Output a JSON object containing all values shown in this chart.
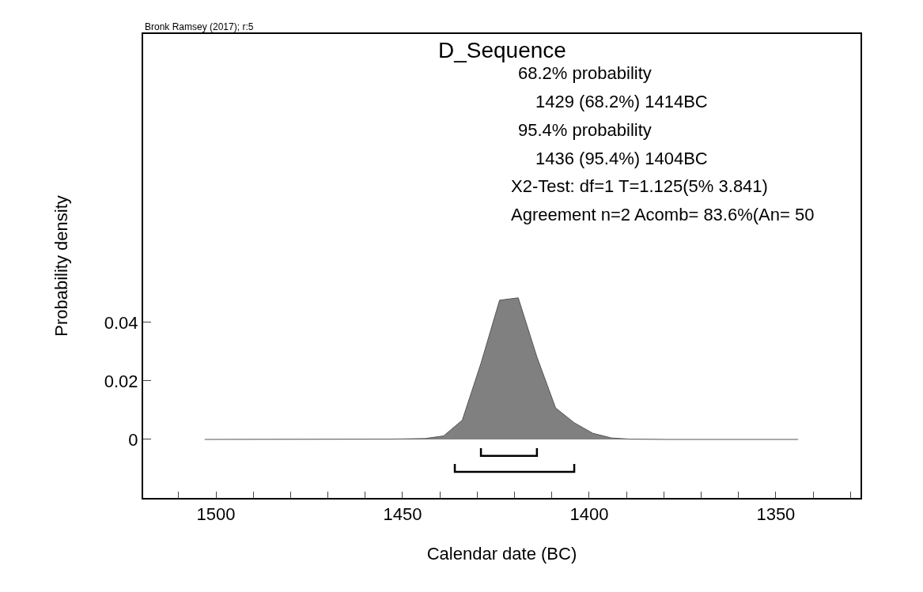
{
  "chart_data": {
    "type": "area",
    "title": "D_Sequence",
    "xlabel": "Calendar date (BC)",
    "ylabel": "Probability density",
    "annotations": [
      "Bronk Ramsey (2017); r:5",
      "68.2% probability",
      "1429 (68.2%) 1414BC",
      "95.4% probability",
      "1436 (95.4%) 1404BC",
      "X2-Test: df=1 T=1.125(5% 3.841)",
      "Agreement n=2 Acomb= 83.6%(An= 50"
    ],
    "series": [
      {
        "color": "#808080",
        "x": [
          1503,
          1454,
          1444,
          1439,
          1434,
          1429,
          1424,
          1419,
          1414,
          1409,
          1404,
          1399,
          1394,
          1389,
          1379,
          1344
        ],
        "values": [
          0,
          0.0001,
          0.0003,
          0.0012,
          0.0066,
          0.026,
          0.0476,
          0.0484,
          0.0282,
          0.0108,
          0.0057,
          0.0021,
          0.0005,
          0.0001,
          0,
          0
        ]
      },
      {
        "type": "line",
        "color": "#000000",
        "x": [
          1429,
          1429,
          1414,
          1414
        ],
        "values": [
          -0.003,
          -0.0056,
          -0.0056,
          -0.003
        ]
      },
      {
        "type": "line",
        "color": "#000000",
        "x": [
          1436,
          1436,
          1404,
          1404
        ],
        "values": [
          -0.0084,
          -0.0111,
          -0.0111,
          -0.0084
        ]
      }
    ],
    "xlim": [
      1519.5,
      1327.3
    ],
    "xticks": [
      {
        "value": 1510,
        "label": null
      },
      1500,
      {
        "value": 1490,
        "label": null
      },
      {
        "value": 1480,
        "label": null
      },
      {
        "value": 1470,
        "label": null
      },
      {
        "value": 1460,
        "label": null
      },
      1450,
      {
        "value": 1440,
        "label": null
      },
      {
        "value": 1430,
        "label": null
      },
      {
        "value": 1420,
        "label": null
      },
      {
        "value": 1410,
        "label": null
      },
      1400,
      {
        "value": 1390,
        "label": null
      },
      {
        "value": 1380,
        "label": null
      },
      {
        "value": 1370,
        "label": null
      },
      {
        "value": 1360,
        "label": null
      },
      1350,
      {
        "value": 1340,
        "label": null
      },
      {
        "value": 1330,
        "label": null
      }
    ],
    "ylim": [
      -0.02,
      0.1386
    ],
    "yticks": [
      0,
      0.02,
      0.04
    ]
  }
}
